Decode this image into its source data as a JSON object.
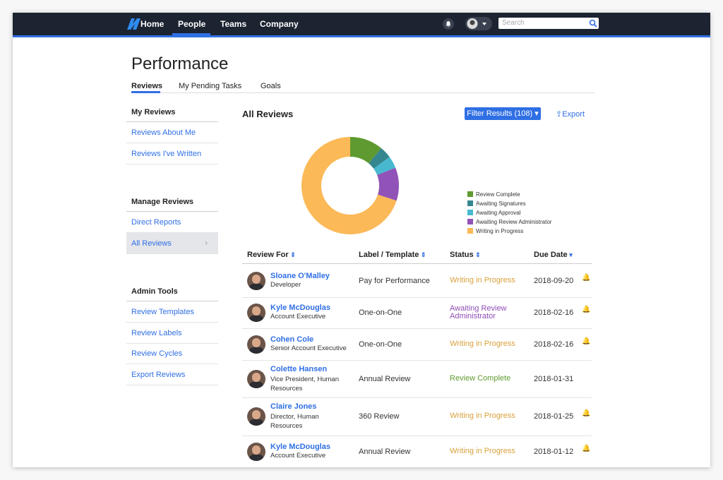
{
  "nav": {
    "links": [
      "Home",
      "People",
      "Teams",
      "Company"
    ],
    "search_placeholder": "Search"
  },
  "page_title": "Performance",
  "tabs": [
    "Reviews",
    "My Pending Tasks",
    "Goals"
  ],
  "sidebar": {
    "sections": [
      {
        "heading": "My Reviews",
        "links": [
          "Reviews About Me",
          "Reviews I've Written"
        ]
      },
      {
        "heading": "Manage Reviews",
        "links": [
          "Direct Reports",
          "All Reviews"
        ]
      },
      {
        "heading": "Admin Tools",
        "links": [
          "Review Templates",
          "Review Labels",
          "Review Cycles",
          "Export Reviews"
        ]
      }
    ]
  },
  "section_title": "All Reviews",
  "filter_button": "Filter Results (108)",
  "export_button": "Export",
  "chart_data": {
    "type": "pie",
    "donut": true,
    "legend": "right",
    "categories": [
      "Review Complete",
      "Awaiting Signatures",
      "Awaiting Approval",
      "Awaiting Review Administrator",
      "Writing in Progress"
    ],
    "values": [
      11,
      4,
      4,
      11,
      70
    ],
    "colors": [
      "#5e9a2f",
      "#35878f",
      "#48b8d0",
      "#9153b8",
      "#fbb957"
    ]
  },
  "table": {
    "columns": [
      "Review For",
      "Label / Template",
      "Status",
      "Due Date"
    ],
    "rows": [
      {
        "name": "Sloane O'Malley",
        "role": "Developer",
        "label": "Pay for Performance",
        "status": "Writing in Progress",
        "status_color": "#d9a03c",
        "due": "2018-09-20",
        "bell": true
      },
      {
        "name": "Kyle McDouglas",
        "role": "Account Executive",
        "label": "One-on-One",
        "status": "Awaiting Review Administrator",
        "status_color": "#8e4db5",
        "due": "2018-02-16",
        "bell": true
      },
      {
        "name": "Cohen Cole",
        "role": "Senior Account Executive",
        "label": "One-on-One",
        "status": "Writing in Progress",
        "status_color": "#d9a03c",
        "due": "2018-02-16",
        "bell": true
      },
      {
        "name": "Colette Hansen",
        "role": "Vice President, Human Resources",
        "label": "Annual Review",
        "status": "Review Complete",
        "status_color": "#5e9a2f",
        "due": "2018-01-31",
        "bell": false
      },
      {
        "name": "Claire Jones",
        "role": "Director, Human Resources",
        "label": "360 Review",
        "status": "Writing in Progress",
        "status_color": "#d9a03c",
        "due": "2018-01-25",
        "bell": true
      },
      {
        "name": "Kyle McDouglas",
        "role": "Account Executive",
        "label": "Annual Review",
        "status": "Writing in Progress",
        "status_color": "#d9a03c",
        "due": "2018-01-12",
        "bell": true
      }
    ]
  }
}
